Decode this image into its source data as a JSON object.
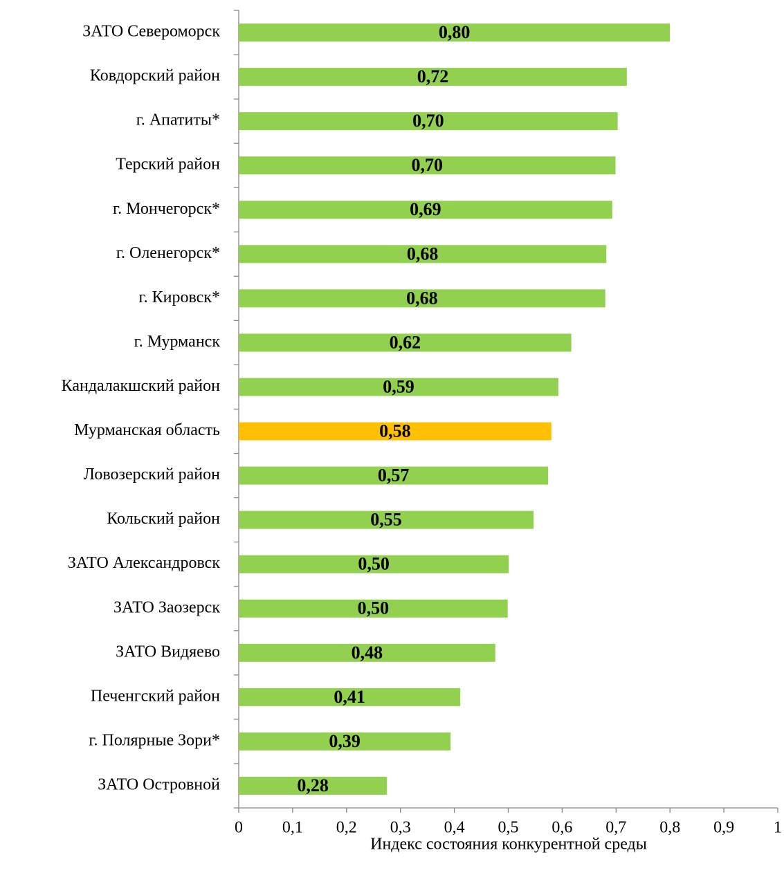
{
  "chart_data": {
    "type": "barh",
    "x_label": "Индекс состояния конкурентной среды",
    "categories": [
      "ЗАТО Североморск",
      "Ковдорский район",
      "г. Апатиты*",
      "Терский район",
      "г. Мончегорск*",
      "г. Оленегорск*",
      "г. Кировск*",
      "г. Мурманск",
      "Кандалакшский район",
      "Мурманская область",
      "Ловозерский район",
      "Кольский район",
      "ЗАТО Александровск",
      "ЗАТО Заозерск",
      "ЗАТО Видяево",
      "Печенгский район",
      "г. Полярные Зори*",
      "ЗАТО Островной"
    ],
    "values": [
      0.8,
      0.72,
      0.703,
      0.699,
      0.693,
      0.682,
      0.68,
      0.617,
      0.593,
      0.58,
      0.574,
      0.547,
      0.501,
      0.499,
      0.476,
      0.411,
      0.393,
      0.275
    ],
    "value_labels": [
      "0,80",
      "0,72",
      "0,70",
      "0,70",
      "0,69",
      "0,68",
      "0,68",
      "0,62",
      "0,59",
      "0,58",
      "0,57",
      "0,55",
      "0,50",
      "0,50",
      "0,48",
      "0,41",
      "0,39",
      "0,28"
    ],
    "colors": [
      "#92d050",
      "#92d050",
      "#92d050",
      "#92d050",
      "#92d050",
      "#92d050",
      "#92d050",
      "#92d050",
      "#92d050",
      "#ffc000",
      "#92d050",
      "#92d050",
      "#92d050",
      "#92d050",
      "#92d050",
      "#92d050",
      "#92d050",
      "#92d050"
    ],
    "xlim": [
      0,
      1
    ],
    "xticks": [
      0,
      {
        "value": 0.1,
        "label": "0,1"
      },
      {
        "value": 0.2,
        "label": "0,2"
      },
      {
        "value": 0.3,
        "label": "0,3"
      },
      {
        "value": 0.4,
        "label": "0,4"
      },
      {
        "value": 0.5,
        "label": "0,5"
      },
      {
        "value": 0.6,
        "label": "0,6"
      },
      {
        "value": 0.7,
        "label": "0,7"
      },
      {
        "value": 0.8,
        "label": "0,8"
      },
      {
        "value": 0.9,
        "label": "0,9"
      },
      1
    ],
    "grid": false
  }
}
